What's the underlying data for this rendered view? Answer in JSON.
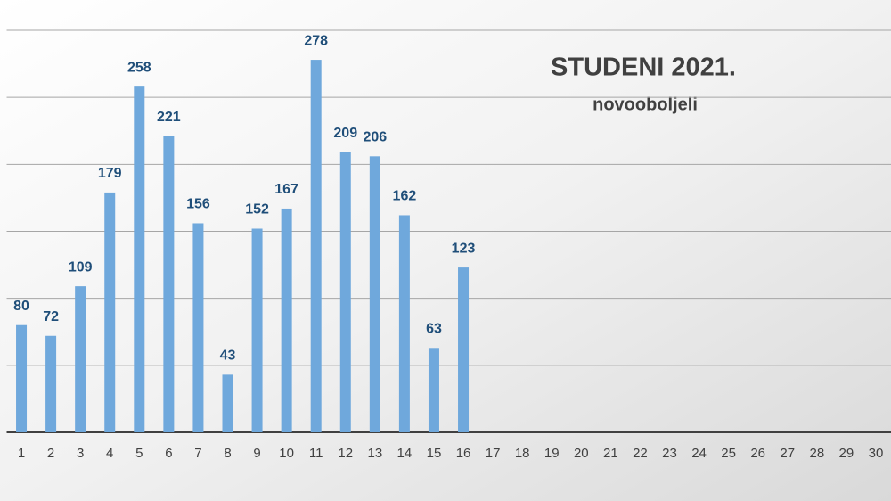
{
  "chart_data": {
    "type": "bar",
    "title": "STUDENI 2021.",
    "subtitle": "novooboljeli",
    "categories": [
      "1",
      "2",
      "3",
      "4",
      "5",
      "6",
      "7",
      "8",
      "9",
      "10",
      "11",
      "12",
      "13",
      "14",
      "15",
      "16",
      "17",
      "18",
      "19",
      "20",
      "21",
      "22",
      "23",
      "24",
      "25",
      "26",
      "27",
      "28",
      "29",
      "30"
    ],
    "values": [
      80,
      72,
      109,
      179,
      258,
      221,
      156,
      43,
      152,
      167,
      278,
      209,
      206,
      162,
      63,
      123,
      null,
      null,
      null,
      null,
      null,
      null,
      null,
      null,
      null,
      null,
      null,
      null,
      null,
      null
    ],
    "color": "#6fa8dc",
    "label_color": "#1f4e79",
    "ylim": [
      0,
      300
    ],
    "yticks": [
      0,
      50,
      100,
      150,
      200,
      250,
      300
    ],
    "grid": true
  }
}
